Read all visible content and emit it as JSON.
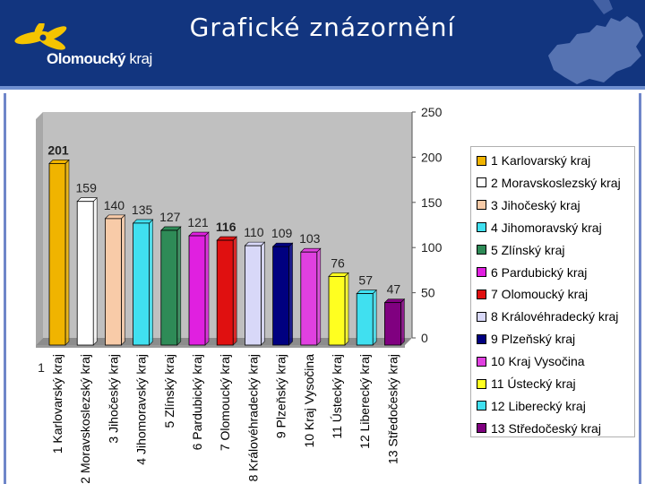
{
  "header": {
    "title": "Grafické znázornění",
    "logo_text_bold": "Olomoucký",
    "logo_text_thin": "kraj"
  },
  "colors": {
    "header_bg": "#12357f",
    "plot_bg": "#c0c0c0"
  },
  "chart_data": {
    "type": "bar",
    "xlabel": "",
    "ylabel": "",
    "x_axis_category_label": "1",
    "ylim": [
      0,
      250
    ],
    "yticks": [
      0,
      50,
      100,
      150,
      200,
      250
    ],
    "grid": false,
    "legend_position": "right",
    "series": [
      {
        "name": "1 Karlovarský kraj",
        "value": 201,
        "color": "#f0b400",
        "tick_label": "1 Karlovarský kraj",
        "bold": true
      },
      {
        "name": "2 Moravskoslezský kraj",
        "value": 159,
        "color": "#ffffff",
        "tick_label": "2 Moravskoslezský kraj",
        "bold": false
      },
      {
        "name": "3 Jihočeský kraj",
        "value": 140,
        "color": "#f8cba8",
        "tick_label": "3 Jihočeský kraj",
        "bold": false
      },
      {
        "name": "4 Jihomoravský kraj",
        "value": 135,
        "color": "#40e0f0",
        "tick_label": "4 Jihomoravský kraj",
        "bold": false
      },
      {
        "name": "5 Zlínský kraj",
        "value": 127,
        "color": "#2e8b57",
        "tick_label": "5 Zlínský kraj",
        "bold": false
      },
      {
        "name": "6 Pardubický kraj",
        "value": 121,
        "color": "#e020e0",
        "tick_label": "6 Pardubický kraj",
        "bold": false
      },
      {
        "name": "7 Olomoucký kraj",
        "value": 116,
        "color": "#e01010",
        "tick_label": "7 Olomoucký kraj",
        "bold": true
      },
      {
        "name": "8 Královéhradecký kraj",
        "value": 110,
        "color": "#d8d8f8",
        "tick_label": "8 Královéhradecký kraj",
        "bold": false
      },
      {
        "name": "9 Plzeňský kraj",
        "value": 109,
        "color": "#000080",
        "tick_label": "9 Plzeňský kraj",
        "bold": false
      },
      {
        "name": "10 Kraj Vysočina",
        "value": 103,
        "color": "#e040e0",
        "tick_label": "10 Kraj Vysočina",
        "bold": false
      },
      {
        "name": "11 Ústecký kraj",
        "value": 76,
        "color": "#ffff20",
        "tick_label": "11 Ústecký kraj",
        "bold": false
      },
      {
        "name": "12 Liberecký kraj",
        "value": 57,
        "color": "#40e0f0",
        "tick_label": "12 Liberecký kraj",
        "bold": false
      },
      {
        "name": "13 Středočeský kraj",
        "value": 47,
        "color": "#800080",
        "tick_label": "13 Středočeský kraj",
        "bold": false
      }
    ]
  }
}
